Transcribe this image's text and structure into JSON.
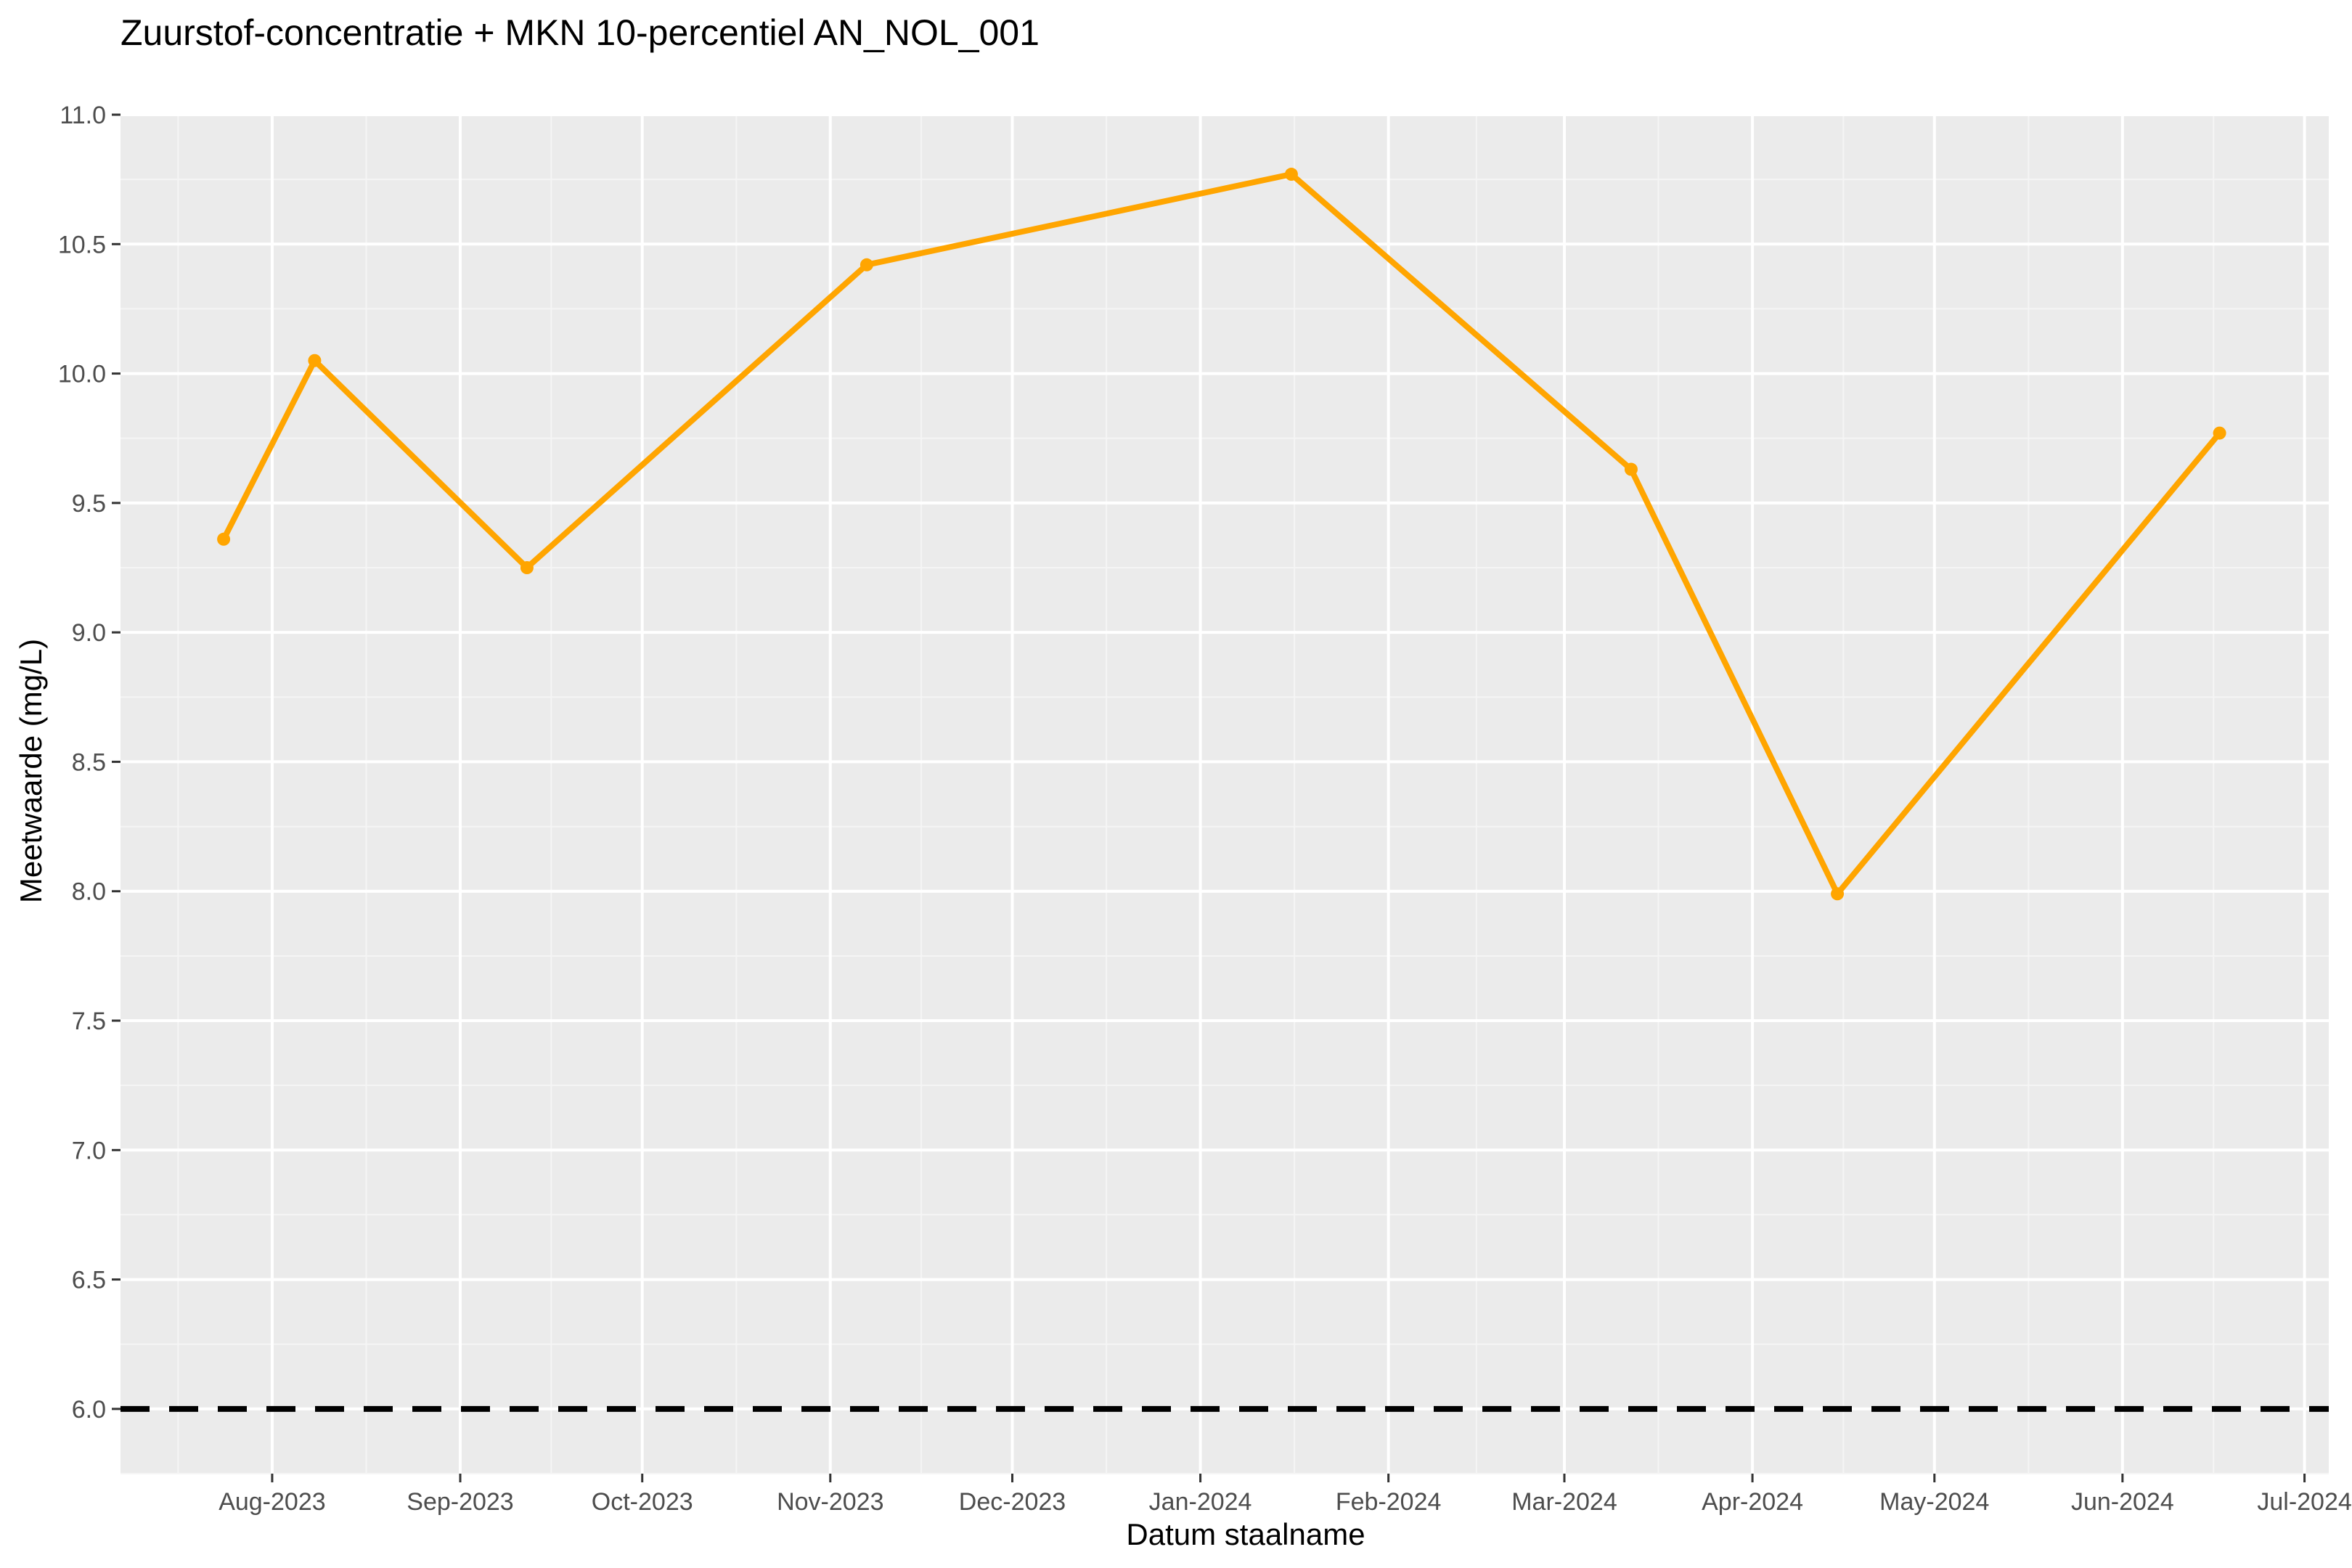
{
  "chart_data": {
    "type": "line",
    "title": "Zuurstof-concentratie + MKN 10-percentiel AN_NOL_001",
    "xlabel": "Datum staalname",
    "ylabel": "Meetwaarde (mg/L)",
    "x_axis_type": "date",
    "xlim": [
      "2023-07-07",
      "2024-07-05"
    ],
    "ylim": [
      5.75,
      11.0
    ],
    "x_ticks": [
      {
        "date": "2023-08-01",
        "label": "Aug-2023"
      },
      {
        "date": "2023-09-01",
        "label": "Sep-2023"
      },
      {
        "date": "2023-10-01",
        "label": "Oct-2023"
      },
      {
        "date": "2023-11-01",
        "label": "Nov-2023"
      },
      {
        "date": "2023-12-01",
        "label": "Dec-2023"
      },
      {
        "date": "2024-01-01",
        "label": "Jan-2024"
      },
      {
        "date": "2024-02-01",
        "label": "Feb-2024"
      },
      {
        "date": "2024-03-01",
        "label": "Mar-2024"
      },
      {
        "date": "2024-04-01",
        "label": "Apr-2024"
      },
      {
        "date": "2024-05-01",
        "label": "May-2024"
      },
      {
        "date": "2024-06-01",
        "label": "Jun-2024"
      },
      {
        "date": "2024-07-01",
        "label": "Jul-2024"
      }
    ],
    "y_ticks": [
      "6.0",
      "6.5",
      "7.0",
      "7.5",
      "8.0",
      "8.5",
      "9.0",
      "9.5",
      "10.0",
      "10.5",
      "11.0"
    ],
    "grid": true,
    "legend": "none",
    "series": [
      {
        "color": "#FFA500",
        "points": [
          {
            "x": "2023-07-24",
            "y": 9.36
          },
          {
            "x": "2023-08-08",
            "y": 10.05
          },
          {
            "x": "2023-09-12",
            "y": 9.25
          },
          {
            "x": "2023-11-07",
            "y": 10.42
          },
          {
            "x": "2024-01-16",
            "y": 10.77
          },
          {
            "x": "2024-03-12",
            "y": 9.63
          },
          {
            "x": "2024-04-15",
            "y": 7.99
          },
          {
            "x": "2024-06-17",
            "y": 9.77
          }
        ]
      }
    ],
    "reference_lines": [
      {
        "y": 6.0,
        "color": "#000000",
        "style": "dashed"
      }
    ],
    "colors": {
      "panel_background": "#EBEBEB",
      "grid_major": "#FFFFFF",
      "grid_minor": "#F5F5F5",
      "tick_text": "#4D4D4D",
      "axis_ticks": "#333333"
    }
  }
}
